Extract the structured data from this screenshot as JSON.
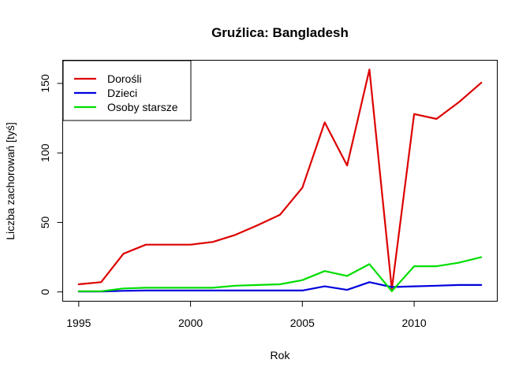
{
  "chart_data": {
    "type": "line",
    "title": "Gruźlica: Bangladesh",
    "xlabel": "Rok",
    "ylabel": "Liczba zachorowań [tyś]",
    "x": [
      1995,
      1996,
      1997,
      1998,
      1999,
      2000,
      2001,
      2002,
      2003,
      2004,
      2005,
      2006,
      2007,
      2008,
      2009,
      2010,
      2011,
      2012,
      2013
    ],
    "xlim": [
      1994.3,
      2013.7
    ],
    "ylim": [
      -6.4,
      166.4
    ],
    "xticks": [
      "1995",
      "2000",
      "2005",
      "2010"
    ],
    "yticks": [
      "0",
      "50",
      "100",
      "150"
    ],
    "grid": false,
    "legend_position": "top-left",
    "series": [
      {
        "name": "Dorośli",
        "color": "#dd0000",
        "values": [
          5.5,
          7,
          27.5,
          34,
          34,
          34,
          36,
          41,
          48,
          55.5,
          75,
          122,
          91,
          160,
          2,
          128,
          124.5,
          136.5,
          150.5
        ]
      },
      {
        "name": "Dzieci",
        "color": "#0000dd",
        "values": [
          0.3,
          0.3,
          0.8,
          1,
          1,
          1,
          1,
          1,
          1,
          1,
          1,
          4,
          1.5,
          7,
          3.5,
          4,
          4.5,
          5,
          5
        ]
      },
      {
        "name": "Osoby starsze",
        "color": "#00dd00",
        "values": [
          0.5,
          0.5,
          2.5,
          3,
          3,
          3,
          3,
          4.5,
          5,
          5.5,
          8.5,
          15,
          11.5,
          20,
          0.5,
          18.5,
          18.5,
          21,
          25
        ]
      }
    ]
  }
}
